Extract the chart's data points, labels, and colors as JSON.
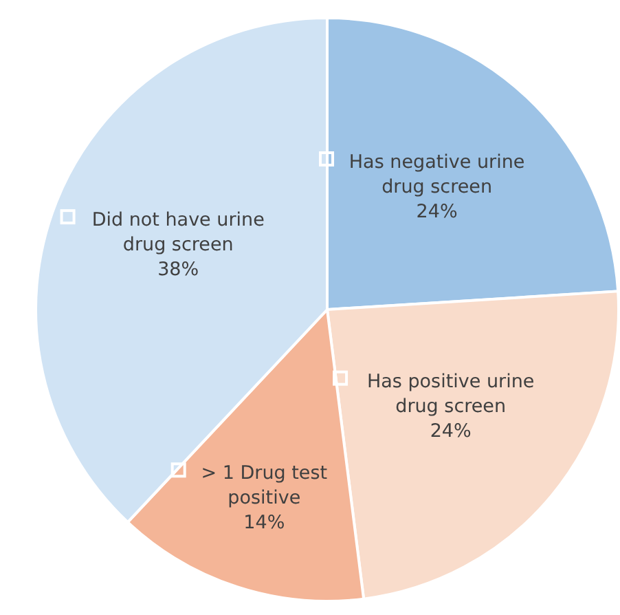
{
  "chart_data": {
    "type": "pie",
    "categories": [
      "Has negative urine drug screen",
      "Has positive urine drug screen",
      "> 1 Drug test positive",
      "Did not have urine drug screen"
    ],
    "values": [
      24,
      24,
      14,
      38
    ],
    "colors": [
      "#9dc3e6",
      "#f9dccb",
      "#f4b597",
      "#d0e3f4"
    ],
    "value_labels": [
      "24%",
      "24%",
      "14%",
      "38%"
    ]
  }
}
